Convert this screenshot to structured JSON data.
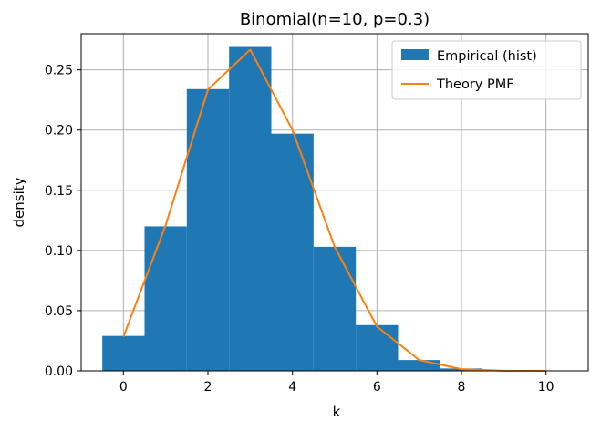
{
  "chart_data": {
    "type": "bar",
    "title": "Binomial(n=10, p=0.3)",
    "xlabel": "k",
    "ylabel": "density",
    "xlim": [
      -1.0,
      11.0
    ],
    "ylim": [
      0.0,
      0.28
    ],
    "x_ticks": [
      0,
      2,
      4,
      6,
      8,
      10
    ],
    "y_ticks": [
      "0.00",
      "0.05",
      "0.10",
      "0.15",
      "0.20",
      "0.25"
    ],
    "grid": true,
    "legend_position": "top-right",
    "series": [
      {
        "name": "Empirical (hist)",
        "kind": "histogram",
        "color": "#1f77b4",
        "bin_centers": [
          0,
          1,
          2,
          3,
          4,
          5,
          6,
          7,
          8,
          9,
          10
        ],
        "bin_width": 1,
        "values": [
          0.029,
          0.12,
          0.234,
          0.269,
          0.197,
          0.103,
          0.038,
          0.009,
          0.002,
          0.0,
          0.0
        ]
      },
      {
        "name": "Theory PMF",
        "kind": "line",
        "color": "#ff7f0e",
        "x": [
          0,
          1,
          2,
          3,
          4,
          5,
          6,
          7,
          8,
          9,
          10
        ],
        "values": [
          0.0282,
          0.1211,
          0.2335,
          0.2668,
          0.2001,
          0.1029,
          0.0368,
          0.009,
          0.0014,
          0.0001,
          0.0
        ]
      }
    ]
  }
}
